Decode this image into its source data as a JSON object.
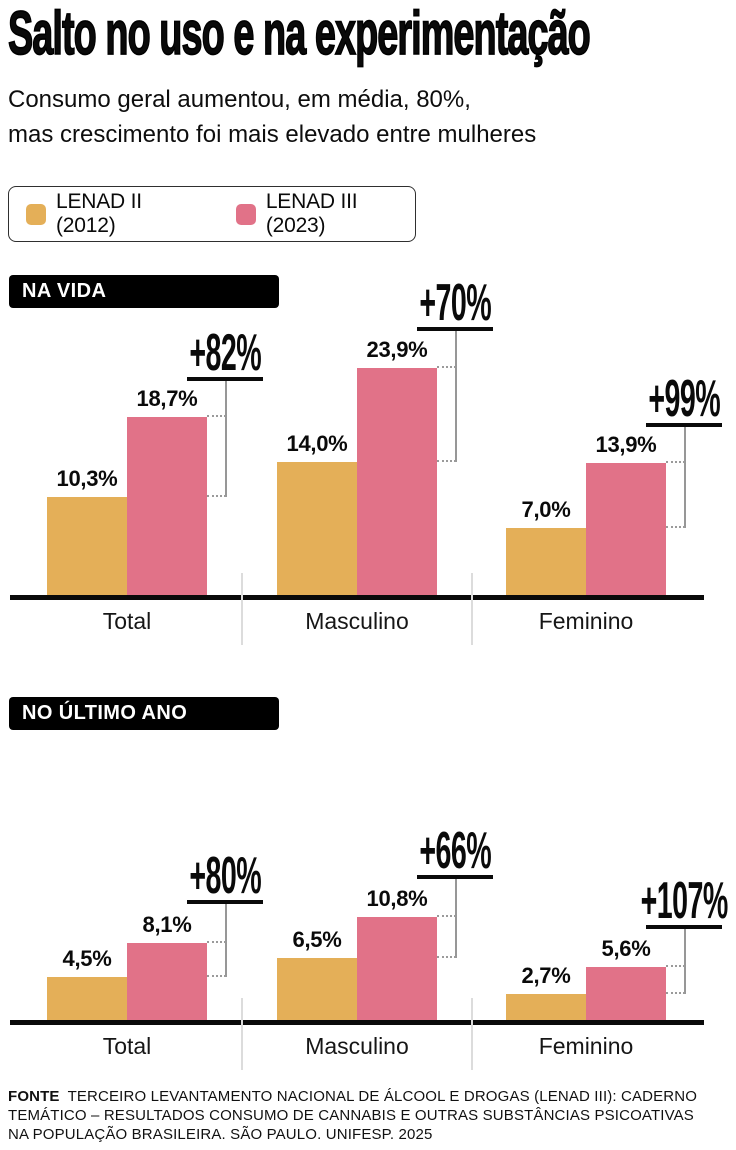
{
  "title": "Salto no uso e na experimentação",
  "subtitle_lines": [
    "Consumo geral aumentou, em média, 80%,",
    "mas crescimento foi mais elevado entre mulheres"
  ],
  "legend": {
    "items": [
      {
        "label": "LENAD II (2012)",
        "color": "#E4AF58"
      },
      {
        "label": "LENAD III (2023)",
        "color": "#E17288"
      }
    ]
  },
  "colors": {
    "bar_2012": "#E4AF58",
    "bar_2023": "#E17288",
    "tag_background": "#000000",
    "tag_text": "#FFFFFF",
    "connector_gray": "#9a9a9a",
    "divider_gray": "#dcdcdc"
  },
  "chart_data": [
    {
      "type": "bar",
      "section_label": "NA VIDA",
      "categories": [
        "Total",
        "Masculino",
        "Feminino"
      ],
      "series": [
        {
          "name": "LENAD II (2012)",
          "values": [
            10.3,
            14.0,
            7.0
          ],
          "labels": [
            "10,3%",
            "14,0%",
            "7,0%"
          ]
        },
        {
          "name": "LENAD III (2023)",
          "values": [
            18.7,
            23.9,
            13.9
          ],
          "labels": [
            "18,7%",
            "23,9%",
            "13,9%"
          ]
        }
      ],
      "change_labels": [
        "+82%",
        "+70%",
        "+99%"
      ],
      "unit": "%",
      "ylim": [
        0,
        25
      ],
      "grid": false,
      "legend_position": "top"
    },
    {
      "type": "bar",
      "section_label": "NO ÚLTIMO ANO",
      "categories": [
        "Total",
        "Masculino",
        "Feminino"
      ],
      "series": [
        {
          "name": "LENAD II (2012)",
          "values": [
            4.5,
            6.5,
            2.7
          ],
          "labels": [
            "4,5%",
            "6,5%",
            "2,7%"
          ]
        },
        {
          "name": "LENAD III (2023)",
          "values": [
            8.1,
            10.8,
            5.6
          ],
          "labels": [
            "8,1%",
            "10,8%",
            "5,6%"
          ]
        }
      ],
      "change_labels": [
        "+80%",
        "+66%",
        "+107%"
      ],
      "unit": "%",
      "ylim": [
        0,
        25
      ],
      "grid": false,
      "legend_position": "top"
    }
  ],
  "source": {
    "label": "FONTE",
    "text_lines": [
      "TERCEIRO LEVANTAMENTO NACIONAL DE ÁLCOOL E DROGAS (LENAD III): CADERNO",
      "TEMÁTICO – RESULTADOS CONSUMO DE CANNABIS E OUTRAS SUBSTÂNCIAS PSICOATIVAS",
      "NA POPULAÇÃO BRASILEIRA. SÃO PAULO. UNIFESP. 2025"
    ]
  }
}
